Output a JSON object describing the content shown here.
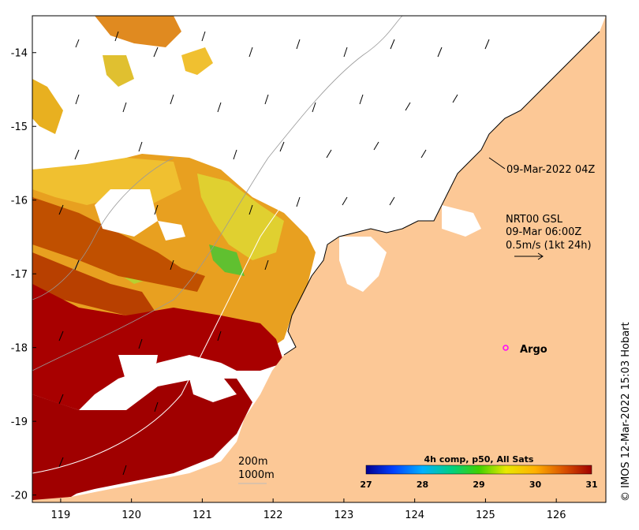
{
  "map": {
    "x_axis": {
      "ticks": [
        "119",
        "120",
        "121",
        "122",
        "123",
        "124",
        "125",
        "126"
      ]
    },
    "y_axis": {
      "ticks": [
        "-14",
        "-15",
        "-16",
        "-17",
        "-18",
        "-19",
        "-20"
      ]
    },
    "lon_range": [
      118.6,
      126.7
    ],
    "lat_range": [
      -20.1,
      -13.5
    ],
    "land_color": "#fcc896",
    "ocean_color": "#ffffff"
  },
  "annotations": {
    "timestamp": "09-Mar-2022 04Z",
    "current_source": "NRT00 GSL",
    "current_time": "09-Mar 06:00Z",
    "current_scale": "0.5m/s (1kt 24h)",
    "argo_label": "Argo",
    "depth_200": "200m",
    "depth_1000": "1000m",
    "credit": "© IMOS 12-Mar-2022 15:03 Hobart"
  },
  "colorbar": {
    "title": "4h comp, p50, All Sats",
    "ticks": [
      "27",
      "28",
      "29",
      "30",
      "31"
    ],
    "range": [
      27,
      31
    ],
    "colors": [
      "#00008f",
      "#0060ff",
      "#00d0ff",
      "#00d060",
      "#50e000",
      "#e8e800",
      "#ffb000",
      "#e06000",
      "#a00000"
    ]
  }
}
